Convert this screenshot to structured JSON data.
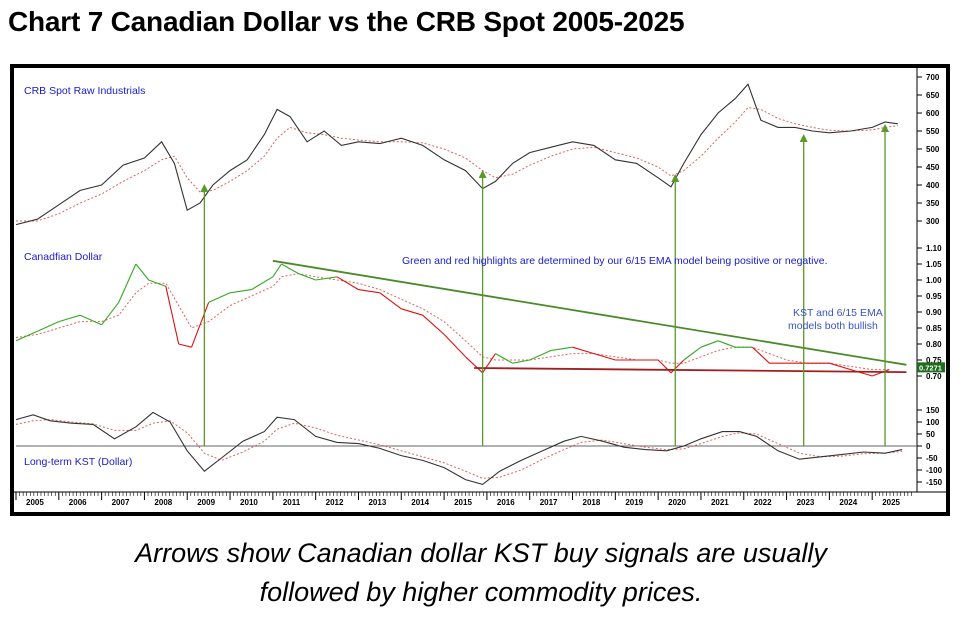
{
  "title": "Chart 7 Canadian Dollar vs the CRB Spot 2005-2025",
  "caption_line1": "Arrows show Canadian dollar KST buy signals are usually",
  "caption_line2": "followed by higher commodity prices.",
  "colors": {
    "price": "#333333",
    "ema": "#e06060",
    "positive": "#33aa22",
    "negative": "#dd1111",
    "arrow": "#5a9a28",
    "trend_top": "#4a8a2a",
    "trend_bottom": "#a02020",
    "annotation": "#1a1acc",
    "note": "#3a52c8"
  },
  "chart_data": [
    {
      "type": "line",
      "title": "CRB Spot Raw Industrials",
      "x": [
        2005.0,
        2005.5,
        2006.0,
        2006.5,
        2007.0,
        2007.5,
        2008.0,
        2008.4,
        2008.7,
        2009.0,
        2009.3,
        2009.6,
        2010.0,
        2010.4,
        2010.8,
        2011.1,
        2011.4,
        2011.8,
        2012.2,
        2012.6,
        2013.0,
        2013.5,
        2014.0,
        2014.5,
        2015.0,
        2015.5,
        2015.9,
        2016.2,
        2016.6,
        2017.0,
        2017.5,
        2018.0,
        2018.5,
        2019.0,
        2019.5,
        2020.0,
        2020.3,
        2020.6,
        2021.0,
        2021.4,
        2021.8,
        2022.1,
        2022.4,
        2022.8,
        2023.2,
        2023.6,
        2024.0,
        2024.5,
        2025.0,
        2025.3,
        2025.6
      ],
      "values": [
        290,
        305,
        345,
        385,
        400,
        455,
        475,
        520,
        460,
        330,
        350,
        400,
        440,
        470,
        540,
        610,
        590,
        520,
        550,
        510,
        520,
        515,
        530,
        510,
        470,
        440,
        390,
        410,
        460,
        490,
        505,
        520,
        510,
        470,
        460,
        420,
        395,
        460,
        540,
        600,
        640,
        680,
        580,
        560,
        560,
        550,
        545,
        550,
        560,
        575,
        570
      ],
      "ema_values": [
        300,
        300,
        320,
        350,
        375,
        410,
        440,
        470,
        480,
        420,
        380,
        385,
        410,
        440,
        480,
        530,
        560,
        545,
        540,
        530,
        525,
        520,
        520,
        517,
        500,
        475,
        440,
        420,
        430,
        455,
        480,
        500,
        505,
        490,
        475,
        450,
        425,
        440,
        480,
        530,
        575,
        615,
        610,
        585,
        570,
        560,
        552,
        550,
        553,
        560,
        565
      ],
      "y_ticks": [
        300,
        350,
        400,
        450,
        500,
        550,
        600,
        650,
        700
      ]
    },
    {
      "type": "line",
      "title": "Canadfian Dollar",
      "x": [
        2005.0,
        2005.5,
        2006.0,
        2006.5,
        2007.0,
        2007.4,
        2007.8,
        2008.1,
        2008.5,
        2008.8,
        2009.1,
        2009.5,
        2010.0,
        2010.5,
        2011.0,
        2011.2,
        2011.6,
        2012.0,
        2012.5,
        2013.0,
        2013.5,
        2014.0,
        2014.5,
        2015.0,
        2015.5,
        2015.9,
        2016.2,
        2016.6,
        2017.0,
        2017.5,
        2018.0,
        2018.5,
        2019.0,
        2019.5,
        2020.0,
        2020.3,
        2020.6,
        2021.0,
        2021.4,
        2021.8,
        2022.2,
        2022.6,
        2023.0,
        2023.5,
        2024.0,
        2024.5,
        2025.0,
        2025.4
      ],
      "values": [
        0.81,
        0.84,
        0.87,
        0.89,
        0.86,
        0.93,
        1.05,
        1.0,
        0.98,
        0.8,
        0.79,
        0.93,
        0.96,
        0.97,
        1.01,
        1.05,
        1.02,
        1.0,
        1.01,
        0.97,
        0.96,
        0.91,
        0.89,
        0.83,
        0.76,
        0.71,
        0.77,
        0.74,
        0.75,
        0.78,
        0.79,
        0.77,
        0.75,
        0.75,
        0.75,
        0.71,
        0.75,
        0.79,
        0.81,
        0.79,
        0.79,
        0.74,
        0.74,
        0.74,
        0.74,
        0.72,
        0.7,
        0.72
      ],
      "positive": [
        true,
        true,
        true,
        true,
        true,
        true,
        true,
        true,
        false,
        false,
        false,
        true,
        true,
        true,
        true,
        true,
        true,
        true,
        false,
        false,
        false,
        false,
        false,
        false,
        false,
        false,
        true,
        true,
        true,
        true,
        false,
        false,
        false,
        false,
        false,
        false,
        true,
        true,
        true,
        true,
        false,
        false,
        false,
        false,
        false,
        false,
        false,
        true
      ],
      "ema_values": [
        0.82,
        0.83,
        0.85,
        0.87,
        0.87,
        0.89,
        0.96,
        0.99,
        0.99,
        0.92,
        0.85,
        0.87,
        0.92,
        0.95,
        0.98,
        1.01,
        1.02,
        1.01,
        1.0,
        0.99,
        0.97,
        0.94,
        0.91,
        0.87,
        0.81,
        0.76,
        0.75,
        0.75,
        0.75,
        0.76,
        0.77,
        0.77,
        0.76,
        0.75,
        0.75,
        0.74,
        0.74,
        0.76,
        0.78,
        0.79,
        0.79,
        0.77,
        0.75,
        0.74,
        0.74,
        0.73,
        0.72,
        0.72
      ],
      "y_ticks": [
        0.7,
        0.75,
        0.8,
        0.85,
        0.9,
        0.95,
        1.0,
        1.05,
        1.1
      ],
      "last_value_label": "0.7271",
      "trendlines": [
        {
          "from": [
            2011.0,
            1.06
          ],
          "to": [
            2025.8,
            0.735
          ]
        },
        {
          "from": [
            2015.7,
            0.725
          ],
          "to": [
            2025.8,
            0.712
          ]
        }
      ]
    },
    {
      "type": "line",
      "title": "Long-term KST (Dollar)",
      "x": [
        2005.0,
        2005.4,
        2005.8,
        2006.3,
        2006.8,
        2007.3,
        2007.8,
        2008.2,
        2008.6,
        2009.0,
        2009.4,
        2009.8,
        2010.3,
        2010.8,
        2011.1,
        2011.5,
        2012.0,
        2012.5,
        2013.0,
        2013.5,
        2014.0,
        2014.5,
        2015.0,
        2015.5,
        2015.9,
        2016.3,
        2016.8,
        2017.3,
        2017.8,
        2018.2,
        2018.7,
        2019.2,
        2019.7,
        2020.2,
        2020.6,
        2021.0,
        2021.5,
        2021.9,
        2022.3,
        2022.8,
        2023.3,
        2023.8,
        2024.3,
        2024.8,
        2025.3,
        2025.7
      ],
      "values": [
        110,
        130,
        105,
        95,
        90,
        30,
        80,
        140,
        100,
        -20,
        -105,
        -50,
        20,
        60,
        120,
        110,
        40,
        15,
        10,
        -10,
        -40,
        -60,
        -90,
        -140,
        -160,
        -105,
        -60,
        -20,
        20,
        40,
        20,
        -5,
        -15,
        -20,
        0,
        30,
        60,
        60,
        40,
        -20,
        -55,
        -45,
        -35,
        -25,
        -30,
        -15
      ],
      "ema_values": [
        90,
        105,
        110,
        100,
        92,
        65,
        65,
        95,
        105,
        55,
        -30,
        -60,
        -25,
        20,
        70,
        95,
        75,
        45,
        25,
        5,
        -20,
        -45,
        -70,
        -105,
        -135,
        -130,
        -100,
        -55,
        -15,
        15,
        25,
        10,
        -5,
        -15,
        -12,
        10,
        40,
        55,
        50,
        10,
        -30,
        -45,
        -42,
        -32,
        -30,
        -22
      ],
      "y_ticks": [
        -150,
        -100,
        -50,
        0,
        50,
        100,
        150
      ],
      "y_tick_labels": [
        "-150",
        "-100",
        "-50",
        "0",
        "50",
        "100",
        "150"
      ]
    }
  ],
  "annotations": {
    "ema_model_note": "Green and red highlights are determined by our 6/15 EMA model being positive or negative.",
    "kst_note_line1": "KST and 6/15 EMA",
    "kst_note_line2": "models both bullish"
  },
  "signals": {
    "years": [
      2009.4,
      2015.9,
      2020.4,
      2023.4,
      2025.3
    ]
  },
  "x_axis": {
    "labels": [
      "2005",
      "2006",
      "2007",
      "2008",
      "2009",
      "2010",
      "2011",
      "2012",
      "2013",
      "2014",
      "2015",
      "2016",
      "2017",
      "2018",
      "2019",
      "2020",
      "2021",
      "2022",
      "2023",
      "2024",
      "2025"
    ]
  }
}
